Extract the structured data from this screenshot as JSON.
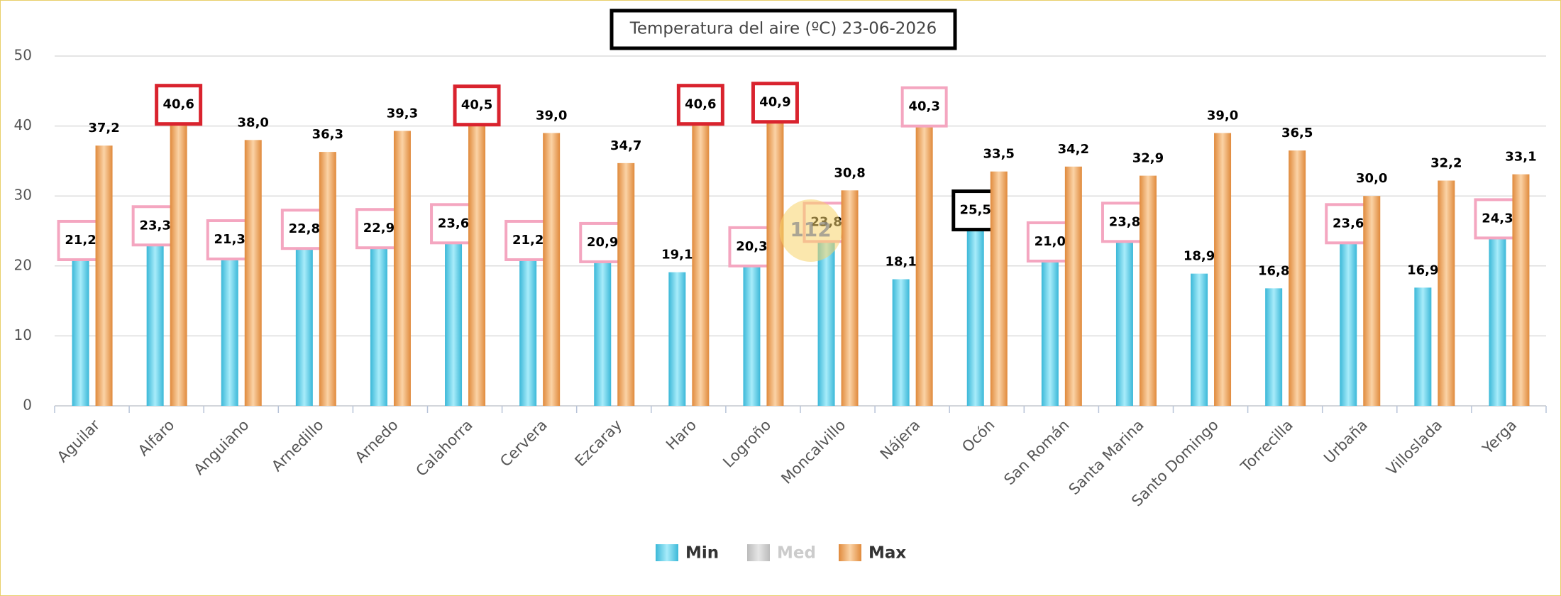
{
  "chart_data": {
    "type": "bar",
    "title": "Temperatura del aire (ºC) 23-06-2026",
    "badge": "112",
    "categories": [
      "Aguilar",
      "Alfaro",
      "Anguiano",
      "Arnedillo",
      "Arnedo",
      "Calahorra",
      "Cervera",
      "Ezcaray",
      "Haro",
      "Logroño",
      "Moncalvillo",
      "Nájera",
      "Ocón",
      "San Román",
      "Santa Marina",
      "Santo Domingo",
      "Torrecilla",
      "Urbaña",
      "Villoslada",
      "Yerga"
    ],
    "series": [
      {
        "name": "Min",
        "color": "#5fd0ea",
        "hidden": false,
        "values": [
          21.2,
          23.3,
          21.3,
          22.8,
          22.9,
          23.6,
          21.2,
          20.9,
          19.1,
          20.3,
          23.8,
          18.1,
          25.5,
          21.0,
          23.8,
          18.9,
          16.8,
          23.6,
          16.9,
          24.3
        ],
        "value_labels": [
          "21,2",
          "23,3",
          "21,3",
          "22,8",
          "22,9",
          "23,6",
          "21,2",
          "20,9",
          "19,1",
          "20,3",
          "23,8",
          "18,1",
          "25,5",
          "21,0",
          "23,8",
          "18,9",
          "16,8",
          "23,6",
          "16,9",
          "24,3"
        ],
        "label_boxes": [
          "#f4a6c0",
          "#f4a6c0",
          "#f4a6c0",
          "#f4a6c0",
          "#f4a6c0",
          "#f4a6c0",
          "#f4a6c0",
          "#f4a6c0",
          null,
          "#f4a6c0",
          "#f4a6c0",
          null,
          "#000000",
          "#f4a6c0",
          "#f4a6c0",
          null,
          null,
          "#f4a6c0",
          null,
          "#f4a6c0"
        ]
      },
      {
        "name": "Med",
        "color": "#cccccc",
        "hidden": true,
        "values": [
          null,
          null,
          null,
          null,
          null,
          null,
          null,
          null,
          null,
          null,
          null,
          null,
          null,
          null,
          null,
          null,
          null,
          null,
          null,
          null
        ]
      },
      {
        "name": "Max",
        "color": "#f0a25a",
        "hidden": false,
        "values": [
          37.2,
          40.6,
          38.0,
          36.3,
          39.3,
          40.5,
          39.0,
          34.7,
          40.6,
          40.9,
          30.8,
          40.3,
          33.5,
          34.2,
          32.9,
          39.0,
          36.5,
          30.0,
          32.2,
          33.1
        ],
        "value_labels": [
          "37,2",
          "40,6",
          "38,0",
          "36,3",
          "39,3",
          "40,5",
          "39,0",
          "34,7",
          "40,6",
          "40,9",
          "30,8",
          "40,3",
          "33,5",
          "34,2",
          "32,9",
          "39,0",
          "36,5",
          "30,0",
          "32,2",
          "33,1"
        ],
        "label_boxes": [
          null,
          "#d9232e",
          null,
          null,
          null,
          "#d9232e",
          null,
          null,
          "#d9232e",
          "#d9232e",
          null,
          "#f4a6c0",
          null,
          null,
          null,
          null,
          null,
          null,
          null,
          null
        ]
      }
    ],
    "ylim": [
      0,
      50
    ],
    "yticks": [
      0,
      10,
      20,
      30,
      40,
      50
    ],
    "grid": true
  }
}
